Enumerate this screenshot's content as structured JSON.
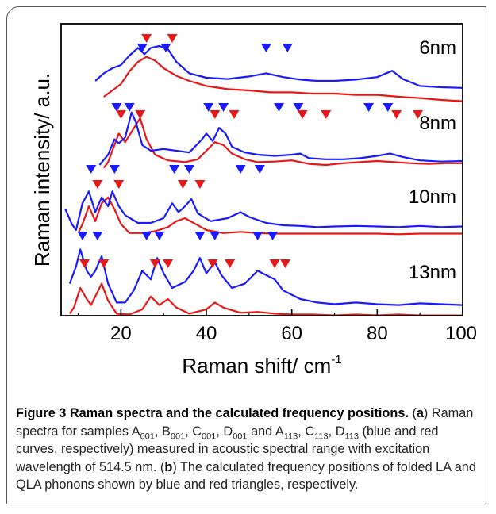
{
  "figure": {
    "caption_title": "Figure 3 Raman spectra and the calculated frequency positions.",
    "caption_parts": {
      "a_open": "(",
      "a_letter": "a",
      "a_text1": ") Raman spectra for samples A",
      "sub1": "001",
      "t2": ", B",
      "sub2": "001",
      "t3": ", C",
      "sub3": "001",
      "t4": ", D",
      "sub4": "001",
      "t5": " and A",
      "sub5": "113",
      "t6": ", C",
      "sub6": "113",
      "t7": ", D",
      "sub7": "113",
      "t8": " (blue and red curves, respectively) measured in acoustic spectral range with excitation wavelength of 514.5 nm. (",
      "b_letter": "b",
      "t9": ") The calculated frequency positions of folded LA and QLA phonons shown by blue and red triangles, respectively."
    }
  },
  "chart_data": {
    "type": "line",
    "xlabel": "Raman shift/ cm",
    "xlabel_sup": "-1",
    "ylabel": "Raman intensity/ a.u.",
    "xlim": [
      6,
      100
    ],
    "x_ticks": [
      20,
      40,
      60,
      80,
      100
    ],
    "y_ticks": [],
    "grid": false,
    "legend": "none",
    "colors": {
      "blue": "#1a1aff",
      "red": "#e81818",
      "axis": "#000000"
    },
    "samples": [
      {
        "label": "6nm",
        "blue_curve": [
          [
            14,
            0.3
          ],
          [
            16,
            0.42
          ],
          [
            18,
            0.5
          ],
          [
            20,
            0.55
          ],
          [
            22,
            0.7
          ],
          [
            24,
            0.82
          ],
          [
            25.5,
            0.72
          ],
          [
            27,
            0.82
          ],
          [
            29,
            0.85
          ],
          [
            31,
            0.8
          ],
          [
            33,
            0.6
          ],
          [
            36,
            0.42
          ],
          [
            40,
            0.35
          ],
          [
            45,
            0.33
          ],
          [
            50,
            0.37
          ],
          [
            54,
            0.42
          ],
          [
            58,
            0.36
          ],
          [
            62,
            0.32
          ],
          [
            66,
            0.3
          ],
          [
            70,
            0.3
          ],
          [
            75,
            0.32
          ],
          [
            80,
            0.36
          ],
          [
            83.5,
            0.46
          ],
          [
            86,
            0.33
          ],
          [
            90,
            0.22
          ],
          [
            95,
            0.2
          ],
          [
            100,
            0.19
          ]
        ],
        "red_curve": [
          [
            16,
            0.05
          ],
          [
            18,
            0.15
          ],
          [
            20,
            0.25
          ],
          [
            22,
            0.45
          ],
          [
            24,
            0.6
          ],
          [
            26,
            0.68
          ],
          [
            28,
            0.62
          ],
          [
            30,
            0.5
          ],
          [
            33,
            0.38
          ],
          [
            36,
            0.3
          ],
          [
            40,
            0.22
          ],
          [
            45,
            0.17
          ],
          [
            50,
            0.15
          ],
          [
            55,
            0.12
          ],
          [
            60,
            0.12
          ],
          [
            65,
            0.1
          ],
          [
            70,
            0.1
          ],
          [
            75,
            0.08
          ],
          [
            80,
            0.08
          ],
          [
            85,
            0.05
          ],
          [
            90,
            0.03
          ],
          [
            95,
            0.0
          ],
          [
            100,
            -0.02
          ]
        ],
        "blue_markers": [
          25,
          30.5,
          54,
          59
        ],
        "red_markers": [
          26,
          32
        ]
      },
      {
        "label": "8nm",
        "blue_curve": [
          [
            15,
            0.0
          ],
          [
            17,
            0.18
          ],
          [
            18.5,
            0.45
          ],
          [
            19.5,
            0.38
          ],
          [
            21,
            0.48
          ],
          [
            22.5,
            0.92
          ],
          [
            23.5,
            0.75
          ],
          [
            25,
            0.35
          ],
          [
            27,
            0.25
          ],
          [
            30,
            0.28
          ],
          [
            33,
            0.25
          ],
          [
            36,
            0.22
          ],
          [
            39,
            0.45
          ],
          [
            40,
            0.55
          ],
          [
            41.5,
            0.42
          ],
          [
            43,
            0.65
          ],
          [
            44.5,
            0.55
          ],
          [
            46,
            0.32
          ],
          [
            49,
            0.22
          ],
          [
            52,
            0.18
          ],
          [
            56,
            0.16
          ],
          [
            60,
            0.18
          ],
          [
            62,
            0.2
          ],
          [
            64,
            0.12
          ],
          [
            68,
            0.1
          ],
          [
            72,
            0.1
          ],
          [
            76,
            0.12
          ],
          [
            80,
            0.16
          ],
          [
            83,
            0.2
          ],
          [
            86,
            0.14
          ],
          [
            90,
            0.08
          ],
          [
            95,
            0.06
          ],
          [
            100,
            0.07
          ]
        ],
        "red_curve": [
          [
            16,
            -0.05
          ],
          [
            17,
            0.05
          ],
          [
            18,
            0.25
          ],
          [
            19.5,
            0.55
          ],
          [
            21,
            0.4
          ],
          [
            22.5,
            0.58
          ],
          [
            24.5,
            0.82
          ],
          [
            26,
            0.45
          ],
          [
            28,
            0.18
          ],
          [
            31,
            0.08
          ],
          [
            35,
            0.05
          ],
          [
            38,
            0.1
          ],
          [
            40,
            0.25
          ],
          [
            42,
            0.4
          ],
          [
            44,
            0.35
          ],
          [
            46,
            0.2
          ],
          [
            49,
            0.1
          ],
          [
            52,
            0.05
          ],
          [
            56,
            0.06
          ],
          [
            60,
            0.08
          ],
          [
            64,
            0.02
          ],
          [
            68,
            0.0
          ],
          [
            72,
            0.03
          ],
          [
            76,
            0.05
          ],
          [
            80,
            0.07
          ],
          [
            84,
            0.05
          ],
          [
            88,
            0.03
          ],
          [
            92,
            0.02
          ],
          [
            96,
            0.03
          ],
          [
            100,
            0.03
          ]
        ],
        "blue_markers": [
          19,
          22,
          40.5,
          44,
          57,
          61.5,
          78,
          82.5
        ],
        "red_markers": [
          20,
          24.5,
          42,
          46.5,
          62.5,
          68,
          84.5,
          89.5
        ]
      },
      {
        "label": "10nm",
        "blue_curve": [
          [
            7,
            0.35
          ],
          [
            8.5,
            0.1
          ],
          [
            9.5,
            0.0
          ],
          [
            11,
            0.45
          ],
          [
            12.5,
            0.65
          ],
          [
            14,
            0.3
          ],
          [
            15.5,
            0.55
          ],
          [
            17,
            0.4
          ],
          [
            18,
            0.65
          ],
          [
            19.5,
            0.4
          ],
          [
            21,
            0.25
          ],
          [
            24,
            0.12
          ],
          [
            27,
            0.12
          ],
          [
            30,
            0.2
          ],
          [
            32,
            0.45
          ],
          [
            33.5,
            0.3
          ],
          [
            35,
            0.4
          ],
          [
            36.5,
            0.52
          ],
          [
            38,
            0.28
          ],
          [
            41,
            0.15
          ],
          [
            45,
            0.2
          ],
          [
            48,
            0.3
          ],
          [
            50,
            0.22
          ],
          [
            54,
            0.12
          ],
          [
            58,
            0.08
          ],
          [
            62,
            0.07
          ],
          [
            66,
            0.05
          ],
          [
            70,
            0.06
          ],
          [
            75,
            0.07
          ],
          [
            80,
            0.06
          ],
          [
            85,
            0.05
          ],
          [
            90,
            0.07
          ],
          [
            95,
            0.05
          ],
          [
            100,
            0.06
          ]
        ],
        "red_curve": [
          [
            10,
            -0.05
          ],
          [
            11,
            0.1
          ],
          [
            12.5,
            0.4
          ],
          [
            14,
            0.15
          ],
          [
            15.5,
            0.45
          ],
          [
            17,
            0.55
          ],
          [
            18.5,
            0.35
          ],
          [
            20,
            0.1
          ],
          [
            22,
            -0.05
          ],
          [
            25,
            -0.05
          ],
          [
            28,
            -0.02
          ],
          [
            31,
            0.05
          ],
          [
            33,
            0.15
          ],
          [
            35,
            0.2
          ],
          [
            37,
            0.12
          ],
          [
            40,
            0.0
          ],
          [
            44,
            -0.05
          ],
          [
            48,
            -0.03
          ],
          [
            52,
            -0.05
          ],
          [
            56,
            -0.06
          ],
          [
            60,
            -0.06
          ],
          [
            65,
            -0.06
          ],
          [
            70,
            -0.06
          ],
          [
            75,
            -0.06
          ],
          [
            80,
            -0.06
          ],
          [
            85,
            -0.07
          ],
          [
            90,
            -0.06
          ],
          [
            95,
            -0.06
          ],
          [
            100,
            -0.06
          ]
        ],
        "blue_markers": [
          13,
          18.5,
          32.5,
          36,
          48,
          52.5
        ],
        "red_markers": [
          14.5,
          19.5,
          34.5,
          38.5
        ]
      },
      {
        "label": "13nm",
        "blue_curve": [
          [
            8,
            0.3
          ],
          [
            9.5,
            0.5
          ],
          [
            10.5,
            0.7
          ],
          [
            12,
            0.45
          ],
          [
            13,
            0.38
          ],
          [
            14,
            0.45
          ],
          [
            15.5,
            0.62
          ],
          [
            17,
            0.3
          ],
          [
            19,
            0.08
          ],
          [
            21,
            0.08
          ],
          [
            23,
            0.22
          ],
          [
            25,
            0.45
          ],
          [
            27,
            0.35
          ],
          [
            28.5,
            0.6
          ],
          [
            30,
            0.42
          ],
          [
            32,
            0.25
          ],
          [
            35,
            0.32
          ],
          [
            37,
            0.45
          ],
          [
            38.5,
            0.6
          ],
          [
            40,
            0.42
          ],
          [
            42,
            0.55
          ],
          [
            43.5,
            0.4
          ],
          [
            46,
            0.25
          ],
          [
            49,
            0.3
          ],
          [
            52,
            0.45
          ],
          [
            54,
            0.4
          ],
          [
            56,
            0.35
          ],
          [
            58,
            0.22
          ],
          [
            62,
            0.12
          ],
          [
            66,
            0.08
          ],
          [
            70,
            0.06
          ],
          [
            75,
            0.08
          ],
          [
            80,
            0.06
          ],
          [
            85,
            0.05
          ],
          [
            90,
            0.07
          ],
          [
            95,
            0.06
          ],
          [
            100,
            0.05
          ]
        ],
        "red_curve": [
          [
            8,
            -0.05
          ],
          [
            9,
            0.02
          ],
          [
            10.5,
            0.25
          ],
          [
            12,
            0.12
          ],
          [
            13,
            0.05
          ],
          [
            14,
            0.15
          ],
          [
            15.5,
            0.3
          ],
          [
            17,
            0.1
          ],
          [
            19,
            -0.05
          ],
          [
            22,
            -0.06
          ],
          [
            25,
            0.0
          ],
          [
            27,
            0.15
          ],
          [
            29,
            0.05
          ],
          [
            31,
            0.12
          ],
          [
            33,
            0.02
          ],
          [
            36,
            -0.05
          ],
          [
            40,
            0.0
          ],
          [
            42,
            0.08
          ],
          [
            44,
            0.02
          ],
          [
            48,
            -0.04
          ],
          [
            52,
            -0.03
          ],
          [
            56,
            -0.05
          ],
          [
            60,
            -0.06
          ],
          [
            65,
            -0.06
          ],
          [
            70,
            -0.07
          ],
          [
            75,
            -0.06
          ],
          [
            80,
            -0.07
          ],
          [
            85,
            -0.06
          ],
          [
            90,
            -0.07
          ],
          [
            95,
            -0.07
          ],
          [
            100,
            -0.07
          ]
        ],
        "blue_markers": [
          11,
          14.5,
          26,
          29,
          38.5,
          42,
          52,
          55.5
        ],
        "red_markers": [
          11.5,
          16,
          28,
          31,
          41.5,
          45.5,
          56,
          58.5
        ]
      }
    ]
  }
}
